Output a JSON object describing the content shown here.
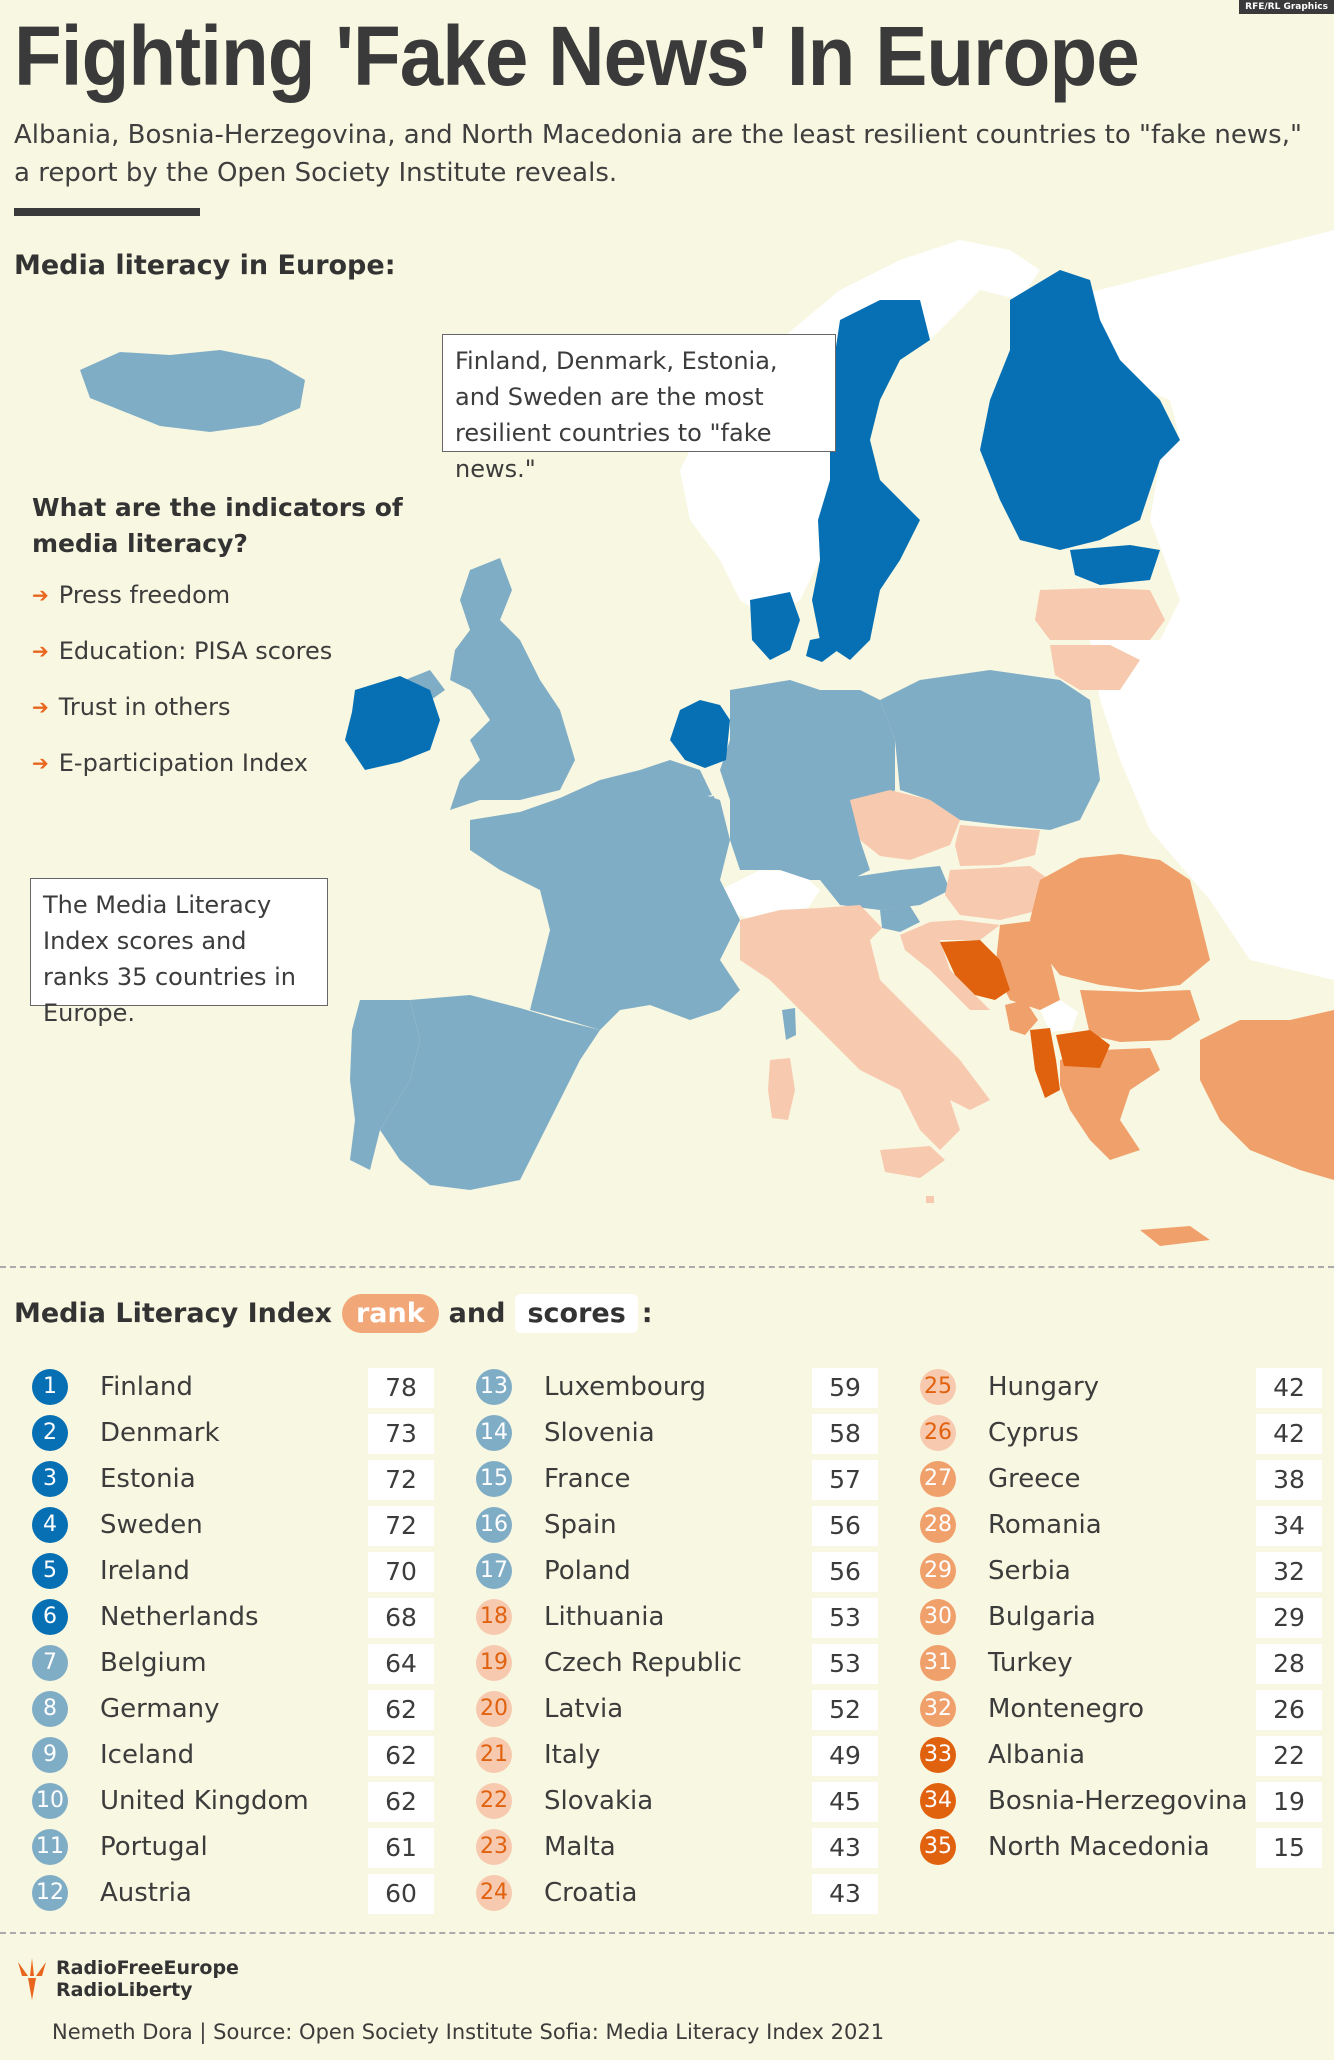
{
  "credit_tag": "RFE/RL Graphics",
  "title": "Fighting 'Fake News' In Europe",
  "subtitle": "Albania, Bosnia-Herzegovina, and North Macedonia are the least resilient countries to \"fake news,\" a report by the Open Society Institute reveals.",
  "map": {
    "heading": "Media literacy in Europe:",
    "callout_top": "Finland, Denmark, Estonia, and Sweden are the most resilient countries to \"fake news.\"",
    "callout_bottom": "The Media Literacy Index scores and ranks 35 countries in Europe.",
    "indicators_title": "What are the indicators of media literacy?",
    "indicators": [
      "Press freedom",
      "Education: PISA scores",
      "Trust in others",
      "E-participation Index"
    ],
    "colors": {
      "background": "#f8f7e1",
      "non_index_land": "#ffffff",
      "tier_1": "#0770b5",
      "tier_2": "#80adc6",
      "tier_3": "#f7c9ae",
      "tier_4": "#f0a06b",
      "tier_5": "#e0620f"
    }
  },
  "ranking": {
    "heading_prefix": "Media Literacy Index",
    "rank_label": "rank",
    "and": "and",
    "scores_label": "scores",
    "colon": ":",
    "entries": [
      {
        "rank": "1",
        "country": "Finland",
        "score": "78",
        "tier": 1
      },
      {
        "rank": "2",
        "country": "Denmark",
        "score": "73",
        "tier": 1
      },
      {
        "rank": "3",
        "country": "Estonia",
        "score": "72",
        "tier": 1
      },
      {
        "rank": "4",
        "country": "Sweden",
        "score": "72",
        "tier": 1
      },
      {
        "rank": "5",
        "country": "Ireland",
        "score": "70",
        "tier": 1
      },
      {
        "rank": "6",
        "country": "Netherlands",
        "score": "68",
        "tier": 1
      },
      {
        "rank": "7",
        "country": "Belgium",
        "score": "64",
        "tier": 2
      },
      {
        "rank": "8",
        "country": "Germany",
        "score": "62",
        "tier": 2
      },
      {
        "rank": "9",
        "country": "Iceland",
        "score": "62",
        "tier": 2
      },
      {
        "rank": "10",
        "country": "United Kingdom",
        "score": "62",
        "tier": 2
      },
      {
        "rank": "11",
        "country": "Portugal",
        "score": "61",
        "tier": 2
      },
      {
        "rank": "12",
        "country": "Austria",
        "score": "60",
        "tier": 2
      },
      {
        "rank": "13",
        "country": "Luxembourg",
        "score": "59",
        "tier": 2
      },
      {
        "rank": "14",
        "country": "Slovenia",
        "score": "58",
        "tier": 2
      },
      {
        "rank": "15",
        "country": "France",
        "score": "57",
        "tier": 2
      },
      {
        "rank": "16",
        "country": "Spain",
        "score": "56",
        "tier": 2
      },
      {
        "rank": "17",
        "country": "Poland",
        "score": "56",
        "tier": 2
      },
      {
        "rank": "18",
        "country": "Lithuania",
        "score": "53",
        "tier": 3
      },
      {
        "rank": "19",
        "country": "Czech Republic",
        "score": "53",
        "tier": 3
      },
      {
        "rank": "20",
        "country": "Latvia",
        "score": "52",
        "tier": 3
      },
      {
        "rank": "21",
        "country": "Italy",
        "score": "49",
        "tier": 3
      },
      {
        "rank": "22",
        "country": "Slovakia",
        "score": "45",
        "tier": 3
      },
      {
        "rank": "23",
        "country": "Malta",
        "score": "43",
        "tier": 3
      },
      {
        "rank": "24",
        "country": "Croatia",
        "score": "43",
        "tier": 3
      },
      {
        "rank": "25",
        "country": "Hungary",
        "score": "42",
        "tier": 3
      },
      {
        "rank": "26",
        "country": "Cyprus",
        "score": "42",
        "tier": 3
      },
      {
        "rank": "27",
        "country": "Greece",
        "score": "38",
        "tier": 4
      },
      {
        "rank": "28",
        "country": "Romania",
        "score": "34",
        "tier": 4
      },
      {
        "rank": "29",
        "country": "Serbia",
        "score": "32",
        "tier": 4
      },
      {
        "rank": "30",
        "country": "Bulgaria",
        "score": "29",
        "tier": 4
      },
      {
        "rank": "31",
        "country": "Turkey",
        "score": "28",
        "tier": 4
      },
      {
        "rank": "32",
        "country": "Montenegro",
        "score": "26",
        "tier": 4
      },
      {
        "rank": "33",
        "country": "Albania",
        "score": "22",
        "tier": 5
      },
      {
        "rank": "34",
        "country": "Bosnia-Herzegovina",
        "score": "19",
        "tier": 5
      },
      {
        "rank": "35",
        "country": "North Macedonia",
        "score": "15",
        "tier": 5
      }
    ]
  },
  "badge_colors": {
    "1": "#0770b5",
    "2": "#80adc6",
    "3": "#f7c9ae",
    "4": "#f0a06b",
    "5": "#e0620f"
  },
  "badge_text_colors": {
    "1": "#ffffff",
    "2": "#ffffff",
    "3": "#e0620f",
    "4": "#ffffff",
    "5": "#ffffff"
  },
  "logo": {
    "line1": "RadioFreeEurope",
    "line2": "RadioLiberty",
    "icon": "torch-logo-icon"
  },
  "footer": "Nemeth Dora | Source: Open Society Institute Sofia: Media Literacy Index 2021"
}
